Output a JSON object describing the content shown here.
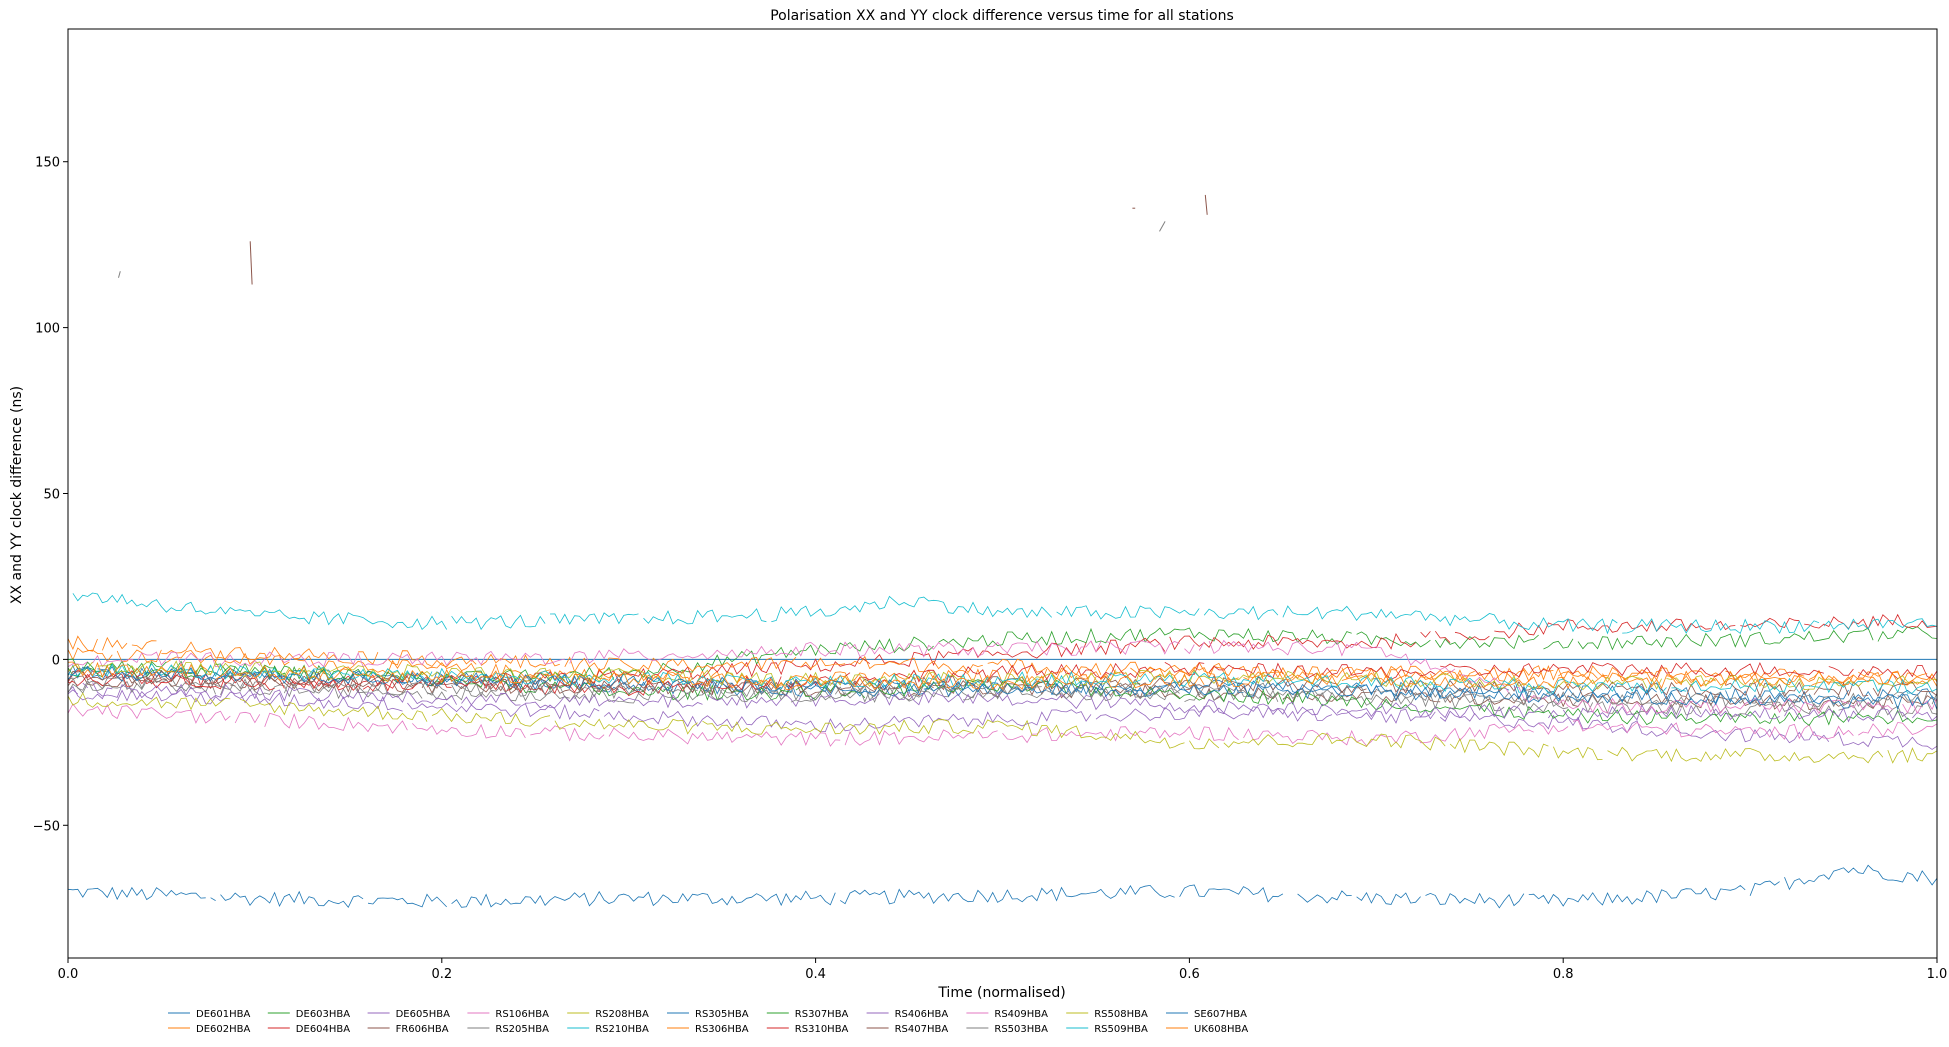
{
  "chart_data": {
    "type": "line",
    "title": "Polarisation XX and YY clock difference versus time for all stations",
    "xlabel": "Time (normalised)",
    "ylabel": "XX and YY clock difference (ns)",
    "xlim": [
      0.0,
      1.0
    ],
    "ylim": [
      -90,
      190
    ],
    "x_ticks": [
      0.0,
      0.2,
      0.4,
      0.6,
      0.8,
      1.0
    ],
    "x_tick_labels": [
      "0.0",
      "0.2",
      "0.4",
      "0.6",
      "0.8",
      "1.0"
    ],
    "y_ticks": [
      -50,
      0,
      50,
      100,
      150
    ],
    "y_tick_labels": [
      "−50",
      "0",
      "50",
      "100",
      "150"
    ],
    "grid": false,
    "legend_position": "bottom",
    "zero_line_color": "#1f77b4",
    "series": [
      {
        "name": "DE601HBA",
        "color": "#1f77b4",
        "x": [
          0.0,
          0.1,
          0.2,
          0.3,
          0.4,
          0.5,
          0.6,
          0.7,
          0.8,
          0.9,
          0.95,
          1.0
        ],
        "values": [
          -70,
          -72,
          -73,
          -72,
          -72,
          -71,
          -70,
          -72,
          -73,
          -70,
          -63,
          -66
        ]
      },
      {
        "name": "DE602HBA",
        "color": "#ff7f0e",
        "x": [
          0.0,
          0.1,
          0.2,
          0.3,
          0.4,
          0.5,
          0.6,
          0.7,
          0.8,
          0.9,
          1.0
        ],
        "values": [
          2,
          0,
          -3,
          -5,
          -6,
          -5,
          -4,
          -4,
          -5,
          -6,
          -6
        ]
      },
      {
        "name": "DE603HBA",
        "color": "#2ca02c",
        "x": [
          0.0,
          0.1,
          0.2,
          0.3,
          0.4,
          0.5,
          0.6,
          0.7,
          0.8,
          0.9,
          1.0
        ],
        "values": [
          -2,
          -3,
          -6,
          -4,
          3,
          6,
          8,
          6,
          5,
          6,
          8
        ]
      },
      {
        "name": "DE604HBA",
        "color": "#d62728",
        "x": [
          0.0,
          0.1,
          0.2,
          0.3,
          0.4,
          0.5,
          0.6,
          0.7,
          0.8,
          0.9,
          1.0
        ],
        "values": [
          -5,
          -6,
          -7,
          -5,
          -2,
          2,
          5,
          5,
          10,
          10,
          12
        ]
      },
      {
        "name": "DE605HBA",
        "color": "#9467bd",
        "x": [
          0.0,
          0.1,
          0.2,
          0.3,
          0.4,
          0.5,
          0.6,
          0.7,
          0.8,
          0.9,
          1.0
        ],
        "values": [
          -10,
          -12,
          -14,
          -17,
          -20,
          -18,
          -16,
          -17,
          -19,
          -23,
          -25
        ]
      },
      {
        "name": "FR606HBA",
        "color": "#8c564b",
        "x": [
          0.0,
          0.1,
          0.2,
          0.3,
          0.4,
          0.5,
          0.6,
          0.7,
          0.8,
          0.9,
          1.0
        ],
        "values": [
          -6,
          -7,
          -8,
          -8,
          -9,
          -9,
          -10,
          -11,
          -12,
          -13,
          -13
        ]
      },
      {
        "name": "RS106HBA",
        "color": "#e377c2",
        "x": [
          0.0,
          0.1,
          0.2,
          0.3,
          0.4,
          0.5,
          0.6,
          0.7,
          0.8,
          0.9,
          1.0
        ],
        "values": [
          -15,
          -18,
          -21,
          -23,
          -24,
          -23,
          -22,
          -24,
          -20,
          -22,
          -21
        ]
      },
      {
        "name": "RS205HBA",
        "color": "#7f7f7f",
        "x": [
          0.0,
          0.1,
          0.2,
          0.3,
          0.4,
          0.5,
          0.6,
          0.7,
          0.8,
          0.9,
          1.0
        ],
        "values": [
          -8,
          -9,
          -10,
          -11,
          -10,
          -10,
          -11,
          -12,
          -14,
          -15,
          -15
        ]
      },
      {
        "name": "RS208HBA",
        "color": "#bcbd22",
        "x": [
          0.0,
          0.1,
          0.2,
          0.3,
          0.4,
          0.5,
          0.6,
          0.7,
          0.8,
          0.9,
          1.0
        ],
        "values": [
          -12,
          -14,
          -17,
          -20,
          -21,
          -20,
          -25,
          -24,
          -28,
          -29,
          -29
        ]
      },
      {
        "name": "RS210HBA",
        "color": "#17becf",
        "x": [
          0.0,
          0.1,
          0.2,
          0.3,
          0.4,
          0.45,
          0.5,
          0.6,
          0.7,
          0.8,
          0.9,
          1.0
        ],
        "values": [
          20,
          13,
          11,
          12,
          14,
          18,
          14,
          14,
          14,
          10,
          10,
          11
        ]
      },
      {
        "name": "RS305HBA",
        "color": "#1f77b4",
        "x": [
          0.0,
          0.1,
          0.2,
          0.3,
          0.4,
          0.5,
          0.6,
          0.7,
          0.8,
          0.9,
          1.0
        ],
        "values": [
          -4,
          -5,
          -6,
          -8,
          -9,
          -9,
          -8,
          -9,
          -10,
          -11,
          -11
        ]
      },
      {
        "name": "RS306HBA",
        "color": "#ff7f0e",
        "x": [
          0.0,
          0.1,
          0.2,
          0.3,
          0.4,
          0.5,
          0.6,
          0.7,
          0.8,
          0.9,
          1.0
        ],
        "values": [
          5,
          2,
          0,
          -2,
          -1,
          -2,
          -3,
          -5,
          -4,
          -5,
          -5
        ]
      },
      {
        "name": "RS307HBA",
        "color": "#2ca02c",
        "x": [
          0.0,
          0.1,
          0.2,
          0.3,
          0.4,
          0.5,
          0.6,
          0.7,
          0.8,
          0.9,
          1.0
        ],
        "values": [
          -3,
          -4,
          -6,
          -10,
          -10,
          -8,
          -10,
          -13,
          -17,
          -18,
          -17
        ]
      },
      {
        "name": "RS310HBA",
        "color": "#d62728",
        "x": [
          0.0,
          0.1,
          0.2,
          0.3,
          0.4,
          0.5,
          0.6,
          0.7,
          0.8,
          0.9,
          1.0
        ],
        "values": [
          -6,
          -7,
          -8,
          -9,
          -6,
          -4,
          -3,
          -4,
          -3,
          -3,
          -4
        ]
      },
      {
        "name": "RS406HBA",
        "color": "#9467bd",
        "x": [
          0.0,
          0.1,
          0.2,
          0.3,
          0.4,
          0.5,
          0.6,
          0.7,
          0.8,
          0.9,
          1.0
        ],
        "values": [
          -9,
          -10,
          -12,
          -13,
          -12,
          -12,
          -14,
          -15,
          -16,
          -16,
          -17
        ]
      },
      {
        "name": "RS407HBA",
        "color": "#8c564b",
        "x": [
          0.0,
          0.1,
          0.2,
          0.3,
          0.4,
          0.5,
          0.6,
          0.7,
          0.8,
          0.9,
          1.0
        ],
        "values": [
          -5,
          -6,
          -7,
          -8,
          -8,
          -7,
          -7,
          -8,
          -9,
          -9,
          -9
        ]
      },
      {
        "name": "RS409HBA",
        "color": "#e377c2",
        "x": [
          0.0,
          0.1,
          0.2,
          0.3,
          0.4,
          0.5,
          0.6,
          0.7,
          0.8,
          0.9,
          1.0
        ],
        "values": [
          0,
          0,
          0,
          1,
          3,
          3,
          4,
          3,
          -14,
          -14,
          -14
        ]
      },
      {
        "name": "RS503HBA",
        "color": "#7f7f7f",
        "x": [
          0.0,
          0.1,
          0.2,
          0.3,
          0.4,
          0.5,
          0.6,
          0.7,
          0.8,
          0.9,
          1.0
        ],
        "values": [
          -7,
          -8,
          -9,
          -10,
          -11,
          -10,
          -9,
          -10,
          -12,
          -12,
          -12
        ]
      },
      {
        "name": "RS508HBA",
        "color": "#bcbd22",
        "x": [
          0.0,
          0.1,
          0.2,
          0.3,
          0.4,
          0.5,
          0.6,
          0.7,
          0.8,
          0.9,
          1.0
        ],
        "values": [
          -2,
          -3,
          -4,
          -5,
          -6,
          -6,
          -5,
          -6,
          -7,
          -7,
          -7
        ]
      },
      {
        "name": "RS509HBA",
        "color": "#17becf",
        "x": [
          0.0,
          0.1,
          0.2,
          0.3,
          0.4,
          0.5,
          0.6,
          0.7,
          0.8,
          0.9,
          1.0
        ],
        "values": [
          -3,
          -4,
          -5,
          -6,
          -7,
          -6,
          -6,
          -7,
          -8,
          -8,
          -8
        ]
      },
      {
        "name": "SE607HBA",
        "color": "#1f77b4",
        "x": [
          0.0,
          0.1,
          0.2,
          0.3,
          0.4,
          0.5,
          0.6,
          0.7,
          0.8,
          0.9,
          1.0
        ],
        "values": [
          -4,
          -5,
          -6,
          -7,
          -8,
          -9,
          -9,
          -10,
          -11,
          -12,
          -13
        ]
      },
      {
        "name": "UK608HBA",
        "color": "#ff7f0e",
        "x": [
          0.0,
          0.1,
          0.2,
          0.3,
          0.4,
          0.5,
          0.6,
          0.7,
          0.8,
          0.9,
          1.0
        ],
        "values": [
          -3,
          -4,
          -5,
          -6,
          -7,
          -7,
          -6,
          -6,
          -7,
          -6,
          -6
        ]
      }
    ],
    "annotations": [
      {
        "color": "#8c564b",
        "x": [
          0.0975,
          0.0985
        ],
        "values": [
          126,
          113
        ]
      },
      {
        "color": "#7f7f7f",
        "x": [
          0.027,
          0.028
        ],
        "values": [
          115,
          117
        ]
      },
      {
        "color": "#8c564b",
        "x": [
          0.5695,
          0.571
        ],
        "values": [
          136,
          136
        ]
      },
      {
        "color": "#7f7f7f",
        "x": [
          0.584,
          0.587
        ],
        "values": [
          129,
          132
        ]
      },
      {
        "color": "#8c564b",
        "x": [
          0.6085,
          0.6095
        ],
        "values": [
          140,
          134
        ]
      }
    ]
  }
}
